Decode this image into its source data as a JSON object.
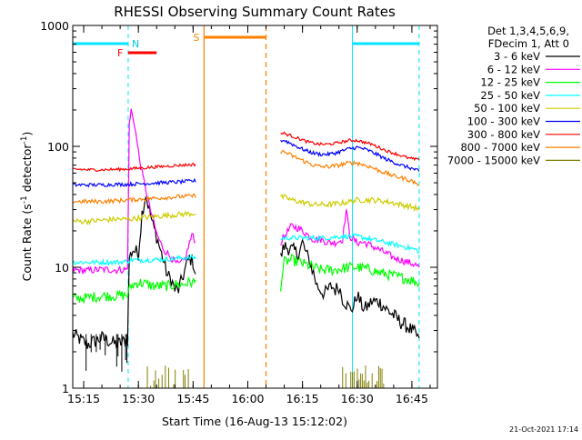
{
  "chart_data": {
    "type": "line",
    "title": "RHESSI Observing Summary Count Rates",
    "xlabel": "Start Time (16-Aug-13 15:12:02)",
    "ylabel_main": "Count Rate (s",
    "ylabel_sup1": "-1",
    "ylabel_mid": " detector",
    "ylabel_sup2": "-1",
    "ylabel_end": ")",
    "timestamp": "21-Oct-2021 17:14",
    "y_scale": "log",
    "ylim": [
      1,
      1000
    ],
    "xlim_minutes": [
      0,
      100
    ],
    "x_ticks": [
      {
        "m": 3,
        "label": "15:15"
      },
      {
        "m": 18,
        "label": "15:30"
      },
      {
        "m": 33,
        "label": "15:45"
      },
      {
        "m": 48,
        "label": "16:00"
      },
      {
        "m": 63,
        "label": "16:15"
      },
      {
        "m": 78,
        "label": "16:30"
      },
      {
        "m": 93,
        "label": "16:45"
      }
    ],
    "y_ticks": [
      {
        "v": 1,
        "label": "1"
      },
      {
        "v": 10,
        "label": "10"
      },
      {
        "v": 100,
        "label": "100"
      },
      {
        "v": 1000,
        "label": "1000"
      }
    ],
    "legend": {
      "header_lines": [
        "Det 1,3,4,5,6,9,",
        "FDecim 1, Att 0"
      ],
      "placement": "top-right"
    },
    "series": [
      {
        "name": "3 - 6 keV",
        "color": "#000000",
        "points": [
          [
            0,
            2.8
          ],
          [
            4,
            2.3
          ],
          [
            8,
            2.6
          ],
          [
            12,
            2.3
          ],
          [
            15,
            2.5
          ],
          [
            15.5,
            12
          ],
          [
            16.5,
            14
          ],
          [
            18,
            13
          ],
          [
            19,
            28
          ],
          [
            20,
            40
          ],
          [
            21,
            30
          ],
          [
            22,
            22
          ],
          [
            23,
            18
          ],
          [
            24,
            14
          ],
          [
            25,
            11
          ],
          [
            26,
            8.5
          ],
          [
            27,
            8
          ],
          [
            28,
            6.5
          ],
          [
            29,
            6.5
          ],
          [
            30,
            8
          ],
          [
            31,
            10
          ],
          [
            32,
            12
          ],
          [
            33,
            11
          ],
          [
            34,
            8
          ],
          [
            57,
            12
          ],
          [
            58,
            15
          ],
          [
            60,
            14
          ],
          [
            62,
            13
          ],
          [
            63,
            16
          ],
          [
            64,
            13
          ],
          [
            65,
            11
          ],
          [
            66,
            9
          ],
          [
            67,
            7
          ],
          [
            68,
            6.5
          ],
          [
            69,
            6
          ],
          [
            70,
            6.5
          ],
          [
            71,
            7
          ],
          [
            72,
            6.5
          ],
          [
            73,
            7
          ],
          [
            74,
            5.5
          ],
          [
            75,
            5
          ],
          [
            76,
            4.5
          ],
          [
            77,
            4.7
          ],
          [
            78,
            6
          ],
          [
            79,
            5
          ],
          [
            80,
            4.5
          ],
          [
            81,
            4.8
          ],
          [
            82,
            5.2
          ],
          [
            84,
            5.2
          ],
          [
            86,
            4.5
          ],
          [
            88,
            4
          ],
          [
            90,
            3.5
          ],
          [
            92,
            3.2
          ],
          [
            94,
            2.8
          ],
          [
            95,
            2.6
          ]
        ]
      },
      {
        "name": "6 - 12 keV",
        "color": "#ff00ff",
        "points": [
          [
            0,
            9.5
          ],
          [
            4,
            9.4
          ],
          [
            8,
            9.6
          ],
          [
            12,
            9.5
          ],
          [
            15,
            9.6
          ],
          [
            15.5,
            150
          ],
          [
            16,
            200
          ],
          [
            17,
            150
          ],
          [
            18,
            90
          ],
          [
            19,
            60
          ],
          [
            20,
            45
          ],
          [
            21,
            32
          ],
          [
            22,
            25
          ],
          [
            23,
            19
          ],
          [
            24,
            16
          ],
          [
            25,
            14
          ],
          [
            26,
            13
          ],
          [
            27,
            12
          ],
          [
            28,
            11
          ],
          [
            29,
            10.5
          ],
          [
            30,
            11
          ],
          [
            31,
            12
          ],
          [
            32,
            16
          ],
          [
            33,
            19
          ],
          [
            34,
            14
          ],
          [
            57,
            16
          ],
          [
            58,
            18
          ],
          [
            60,
            22
          ],
          [
            62,
            21
          ],
          [
            64,
            19
          ],
          [
            66,
            17
          ],
          [
            68,
            17
          ],
          [
            70,
            16
          ],
          [
            72,
            16
          ],
          [
            74,
            17
          ],
          [
            75,
            30
          ],
          [
            76,
            18
          ],
          [
            78,
            16
          ],
          [
            80,
            16
          ],
          [
            82,
            15
          ],
          [
            84,
            14
          ],
          [
            86,
            13
          ],
          [
            88,
            12
          ],
          [
            90,
            11.5
          ],
          [
            92,
            11
          ],
          [
            94,
            10.5
          ],
          [
            95,
            10
          ]
        ]
      },
      {
        "name": "12 - 25 keV",
        "color": "#00ff00",
        "points": [
          [
            0,
            5.5
          ],
          [
            4,
            5.6
          ],
          [
            8,
            5.8
          ],
          [
            12,
            5.8
          ],
          [
            15,
            5.9
          ],
          [
            16,
            7
          ],
          [
            18,
            7.5
          ],
          [
            20,
            7.3
          ],
          [
            22,
            7
          ],
          [
            24,
            7
          ],
          [
            26,
            7
          ],
          [
            28,
            7.2
          ],
          [
            30,
            7.2
          ],
          [
            32,
            7.5
          ],
          [
            34,
            7.5
          ],
          [
            57,
            7
          ],
          [
            58,
            11
          ],
          [
            60,
            11.5
          ],
          [
            62,
            11
          ],
          [
            64,
            10.5
          ],
          [
            66,
            10
          ],
          [
            68,
            9.5
          ],
          [
            70,
            9.5
          ],
          [
            72,
            9.5
          ],
          [
            74,
            9.8
          ],
          [
            76,
            10
          ],
          [
            78,
            10
          ],
          [
            80,
            9.8
          ],
          [
            82,
            9.5
          ],
          [
            84,
            9
          ],
          [
            86,
            8.8
          ],
          [
            88,
            8.5
          ],
          [
            90,
            8.2
          ],
          [
            92,
            8
          ],
          [
            94,
            7.6
          ],
          [
            95,
            7.4
          ]
        ]
      },
      {
        "name": "25 - 50 keV",
        "color": "#00ffff",
        "points": [
          [
            0,
            11
          ],
          [
            4,
            11
          ],
          [
            8,
            11
          ],
          [
            12,
            11
          ],
          [
            15,
            11.2
          ],
          [
            16,
            11.5
          ],
          [
            18,
            11.5
          ],
          [
            20,
            11.5
          ],
          [
            22,
            11.5
          ],
          [
            24,
            11.6
          ],
          [
            26,
            11.7
          ],
          [
            28,
            11.8
          ],
          [
            30,
            12
          ],
          [
            32,
            12
          ],
          [
            34,
            12
          ],
          [
            57,
            17
          ],
          [
            58,
            17.5
          ],
          [
            60,
            17.5
          ],
          [
            62,
            17.5
          ],
          [
            64,
            17.5
          ],
          [
            66,
            17.5
          ],
          [
            68,
            17.5
          ],
          [
            70,
            17.5
          ],
          [
            72,
            17.8
          ],
          [
            74,
            18
          ],
          [
            76,
            18
          ],
          [
            78,
            18
          ],
          [
            80,
            17.5
          ],
          [
            82,
            17
          ],
          [
            84,
            16.5
          ],
          [
            86,
            16
          ],
          [
            88,
            15.5
          ],
          [
            90,
            15
          ],
          [
            92,
            14.5
          ],
          [
            94,
            14
          ],
          [
            95,
            13.5
          ]
        ]
      },
      {
        "name": "50 - 100 keV",
        "color": "#cccc00",
        "points": [
          [
            0,
            24
          ],
          [
            4,
            24
          ],
          [
            8,
            24.5
          ],
          [
            12,
            25
          ],
          [
            15,
            25
          ],
          [
            18,
            25.5
          ],
          [
            21,
            26
          ],
          [
            24,
            26.5
          ],
          [
            27,
            27
          ],
          [
            30,
            27.5
          ],
          [
            34,
            28
          ],
          [
            57,
            38
          ],
          [
            58,
            38
          ],
          [
            60,
            36
          ],
          [
            62,
            35
          ],
          [
            64,
            34
          ],
          [
            66,
            33
          ],
          [
            68,
            33
          ],
          [
            70,
            33
          ],
          [
            72,
            33.5
          ],
          [
            74,
            34
          ],
          [
            76,
            35
          ],
          [
            78,
            36
          ],
          [
            80,
            36
          ],
          [
            82,
            36
          ],
          [
            84,
            35.5
          ],
          [
            86,
            35
          ],
          [
            88,
            34
          ],
          [
            90,
            33
          ],
          [
            92,
            32
          ],
          [
            94,
            31
          ],
          [
            95,
            30
          ]
        ]
      },
      {
        "name": "100 - 300 keV",
        "color": "#0000ff",
        "points": [
          [
            0,
            48
          ],
          [
            4,
            48
          ],
          [
            8,
            48
          ],
          [
            12,
            48.5
          ],
          [
            15,
            48.5
          ],
          [
            18,
            49
          ],
          [
            21,
            49.5
          ],
          [
            24,
            50
          ],
          [
            27,
            50.5
          ],
          [
            30,
            51
          ],
          [
            34,
            52
          ],
          [
            57,
            112
          ],
          [
            58,
            112
          ],
          [
            60,
            105
          ],
          [
            62,
            98
          ],
          [
            64,
            92
          ],
          [
            66,
            88
          ],
          [
            68,
            86
          ],
          [
            70,
            86
          ],
          [
            72,
            88
          ],
          [
            74,
            92
          ],
          [
            76,
            96
          ],
          [
            78,
            98
          ],
          [
            80,
            95
          ],
          [
            82,
            90
          ],
          [
            84,
            84
          ],
          [
            86,
            78
          ],
          [
            88,
            74
          ],
          [
            90,
            70
          ],
          [
            92,
            67
          ],
          [
            94,
            64
          ],
          [
            95,
            62
          ]
        ]
      },
      {
        "name": "300 - 800 keV",
        "color": "#ff0000",
        "points": [
          [
            0,
            65
          ],
          [
            4,
            64
          ],
          [
            8,
            64
          ],
          [
            12,
            64.5
          ],
          [
            15,
            65
          ],
          [
            18,
            66
          ],
          [
            21,
            67
          ],
          [
            24,
            68
          ],
          [
            27,
            69
          ],
          [
            30,
            70
          ],
          [
            34,
            71
          ],
          [
            57,
            128
          ],
          [
            58,
            128
          ],
          [
            60,
            122
          ],
          [
            62,
            116
          ],
          [
            64,
            110
          ],
          [
            66,
            106
          ],
          [
            68,
            104
          ],
          [
            70,
            104
          ],
          [
            72,
            106
          ],
          [
            74,
            109
          ],
          [
            76,
            112
          ],
          [
            78,
            112
          ],
          [
            80,
            108
          ],
          [
            82,
            104
          ],
          [
            84,
            98
          ],
          [
            86,
            92
          ],
          [
            88,
            88
          ],
          [
            90,
            84
          ],
          [
            92,
            80
          ],
          [
            94,
            78
          ],
          [
            95,
            77
          ]
        ]
      },
      {
        "name": "800 - 7000 keV",
        "color": "#ff8000",
        "points": [
          [
            0,
            35
          ],
          [
            4,
            35
          ],
          [
            8,
            35
          ],
          [
            12,
            35.5
          ],
          [
            15,
            36
          ],
          [
            18,
            36.5
          ],
          [
            21,
            37
          ],
          [
            24,
            37.5
          ],
          [
            27,
            38
          ],
          [
            30,
            38.5
          ],
          [
            34,
            39
          ],
          [
            57,
            90
          ],
          [
            58,
            90
          ],
          [
            60,
            84
          ],
          [
            62,
            79
          ],
          [
            64,
            74
          ],
          [
            66,
            70
          ],
          [
            68,
            68
          ],
          [
            70,
            68
          ],
          [
            72,
            69
          ],
          [
            74,
            71
          ],
          [
            76,
            73
          ],
          [
            78,
            73
          ],
          [
            80,
            70
          ],
          [
            82,
            67
          ],
          [
            84,
            63
          ],
          [
            86,
            60
          ],
          [
            88,
            57
          ],
          [
            90,
            55
          ],
          [
            92,
            53
          ],
          [
            94,
            50
          ],
          [
            95,
            48
          ]
        ]
      },
      {
        "name": "7000 - 15000 keV",
        "color": "#808000",
        "points": []
      }
    ],
    "annotations": {
      "night_intervals_min": [
        [
          0,
          15.2
        ],
        [
          76.7,
          95
        ]
      ],
      "night_label": "N",
      "flare_interval_min": [
        15.2,
        23
      ],
      "flare_label": "F",
      "saa_interval_min": [
        36,
        53
      ],
      "saa_label": "S",
      "saa_line_min": [
        36,
        53
      ]
    }
  }
}
